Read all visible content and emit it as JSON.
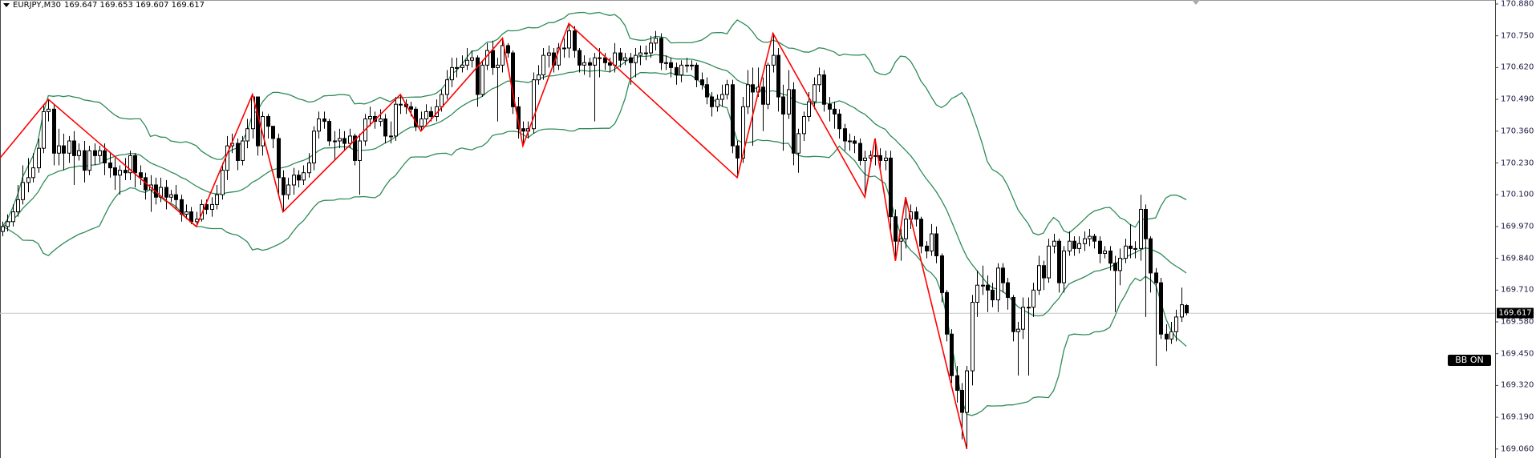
{
  "header": {
    "symbol_timeframe": "EURJPY,M30",
    "ohlc": "169.647 169.653 169.607 169.617"
  },
  "bb_button": {
    "label": "BB ON"
  },
  "colors": {
    "bands": "#2e8b57",
    "zigzag": "#ff0000",
    "bull_fill": "#ffffff",
    "bear_fill": "#000000",
    "price_line": "#c8c8c8"
  },
  "chart_data": {
    "type": "candlestick",
    "symbol": "EURJPY",
    "timeframe": "M30",
    "ylim": [
      169.06,
      170.88
    ],
    "y_ticks": [
      "170.880",
      "170.750",
      "170.620",
      "170.490",
      "170.360",
      "170.230",
      "170.100",
      "169.970",
      "169.840",
      "169.710",
      "169.580",
      "169.450",
      "169.320",
      "169.190",
      "169.060"
    ],
    "current_price": "169.617",
    "indicators": {
      "bollinger": {
        "period": 20,
        "deviations": 2
      }
    },
    "zigzag": [
      [
        0,
        170.25
      ],
      [
        9,
        170.49
      ],
      [
        38,
        169.97
      ],
      [
        49,
        170.51
      ],
      [
        55,
        170.03
      ],
      [
        78,
        170.51
      ],
      [
        82,
        170.36
      ],
      [
        98,
        170.74
      ],
      [
        102,
        170.3
      ],
      [
        111,
        170.8
      ],
      [
        144,
        170.17
      ],
      [
        151,
        170.76
      ],
      [
        169,
        170.09
      ],
      [
        171,
        170.33
      ],
      [
        175,
        169.83
      ],
      [
        177,
        170.09
      ],
      [
        189,
        169.06
      ]
    ],
    "candles": {
      "o": [
        169.95,
        169.97,
        169.99,
        170.03,
        170.08,
        170.15,
        170.17,
        170.21,
        170.29,
        170.44,
        170.45,
        170.27,
        170.3,
        170.27,
        170.32,
        170.26,
        170.28,
        170.2,
        170.28,
        170.26,
        170.28,
        170.23,
        170.21,
        170.18,
        170.2,
        170.19,
        170.26,
        170.19,
        170.17,
        170.12,
        170.14,
        170.09,
        170.13,
        170.09,
        170.1,
        170.08,
        170.02,
        170.03,
        169.99,
        170.0,
        170.06,
        170.04,
        170.06,
        170.1,
        170.2,
        170.3,
        170.31,
        170.24,
        170.32,
        170.37,
        170.5,
        170.3,
        170.42,
        170.38,
        170.33,
        170.17,
        170.1,
        170.14,
        170.18,
        170.16,
        170.19,
        170.23,
        170.36,
        170.41,
        170.4,
        170.32,
        170.32,
        170.33,
        170.31,
        170.34,
        170.24,
        170.32,
        170.41,
        170.42,
        170.4,
        170.41,
        170.34,
        170.34,
        170.47,
        170.47,
        170.46,
        170.45,
        170.38,
        170.41,
        170.44,
        170.42,
        170.46,
        170.51,
        170.57,
        170.62,
        170.62,
        170.63,
        170.65,
        170.66,
        170.51,
        170.63,
        170.69,
        170.62,
        170.63,
        170.71,
        170.68,
        170.46,
        170.37,
        170.36,
        170.37,
        170.57,
        170.59,
        170.67,
        170.68,
        170.63,
        170.7,
        170.7,
        170.77,
        170.69,
        170.63,
        170.64,
        170.63,
        170.66,
        170.66,
        170.64,
        170.63,
        170.68,
        170.65,
        170.66,
        170.64,
        170.67,
        170.68,
        170.68,
        170.72,
        170.74,
        170.64,
        170.64,
        170.62,
        170.59,
        170.63,
        170.63,
        170.63,
        170.57,
        170.55,
        170.5,
        170.46,
        170.49,
        170.51,
        170.55,
        170.3,
        170.25,
        170.46,
        170.55,
        170.52,
        170.54,
        170.47,
        170.63,
        170.67,
        170.5,
        170.43,
        170.53,
        170.27,
        170.35,
        170.42,
        170.48,
        170.55,
        170.59,
        170.47,
        170.45,
        170.43,
        170.37,
        170.32,
        170.32,
        170.31,
        170.24,
        170.25,
        170.26,
        170.26,
        170.24,
        170.25,
        170.01,
        169.91,
        169.92,
        170.0,
        170.03,
        170.0,
        169.89,
        169.87,
        169.94,
        169.85,
        169.7,
        169.53,
        169.36,
        169.3,
        169.21,
        169.38,
        169.66,
        169.73,
        169.73,
        169.71,
        169.67,
        169.8,
        169.74,
        169.68,
        169.54,
        169.55,
        169.64,
        169.64,
        169.71,
        169.81,
        169.76,
        169.89,
        169.91,
        169.74,
        169.87,
        169.91,
        169.88,
        169.9,
        169.92,
        169.93,
        169.91,
        169.86,
        169.87,
        169.82,
        169.79,
        169.84,
        169.89,
        169.88,
        169.88,
        170.04,
        169.92,
        169.78,
        169.74,
        169.53,
        169.51,
        169.54,
        169.6,
        169.647
      ],
      "h": [
        169.99,
        170.02,
        170.06,
        170.14,
        170.22,
        170.25,
        170.27,
        170.33,
        170.47,
        170.49,
        170.47,
        170.37,
        170.35,
        170.34,
        170.36,
        170.31,
        170.32,
        170.3,
        170.31,
        170.3,
        170.31,
        170.27,
        170.25,
        170.22,
        170.25,
        170.28,
        170.27,
        170.22,
        170.19,
        170.18,
        170.17,
        170.17,
        170.16,
        170.12,
        170.14,
        170.1,
        170.06,
        170.05,
        170.03,
        170.08,
        170.08,
        170.09,
        170.14,
        170.23,
        170.34,
        170.35,
        170.33,
        170.34,
        170.41,
        170.51,
        170.5,
        170.44,
        170.43,
        170.38,
        170.35,
        170.2,
        170.17,
        170.21,
        170.2,
        170.22,
        170.27,
        170.38,
        170.44,
        170.44,
        170.41,
        170.36,
        170.37,
        170.36,
        170.37,
        170.35,
        170.35,
        170.43,
        170.46,
        170.44,
        170.45,
        170.43,
        170.4,
        170.5,
        170.51,
        170.49,
        170.48,
        170.46,
        170.44,
        170.47,
        170.46,
        170.49,
        170.53,
        170.61,
        170.66,
        170.66,
        170.67,
        170.7,
        170.69,
        170.67,
        170.65,
        170.72,
        170.73,
        170.66,
        170.74,
        170.72,
        170.69,
        170.5,
        170.4,
        170.4,
        170.6,
        170.63,
        170.7,
        170.71,
        170.7,
        170.72,
        170.74,
        170.8,
        170.79,
        170.7,
        170.67,
        170.66,
        170.68,
        170.7,
        170.68,
        170.66,
        170.72,
        170.7,
        170.68,
        170.68,
        170.7,
        170.71,
        170.71,
        170.75,
        170.77,
        170.76,
        170.67,
        170.66,
        170.64,
        170.65,
        170.66,
        170.65,
        170.64,
        170.6,
        170.58,
        170.52,
        170.51,
        170.55,
        170.57,
        170.57,
        170.32,
        170.5,
        170.61,
        170.62,
        170.62,
        170.58,
        170.64,
        170.76,
        170.7,
        170.55,
        170.61,
        170.56,
        170.37,
        170.44,
        170.52,
        170.58,
        170.62,
        170.61,
        170.5,
        170.48,
        170.45,
        170.39,
        170.35,
        170.34,
        170.33,
        170.28,
        170.28,
        170.33,
        170.29,
        170.28,
        170.28,
        170.04,
        169.96,
        170.09,
        170.06,
        170.05,
        170.01,
        169.91,
        169.98,
        169.97,
        169.86,
        169.71,
        169.55,
        169.4,
        169.33,
        169.4,
        169.69,
        169.79,
        169.81,
        169.77,
        169.74,
        169.82,
        169.82,
        169.76,
        169.69,
        169.58,
        169.68,
        169.68,
        169.74,
        169.85,
        169.83,
        169.92,
        169.94,
        169.92,
        169.89,
        169.95,
        169.93,
        169.93,
        169.95,
        169.96,
        169.94,
        169.93,
        169.89,
        169.89,
        169.85,
        169.88,
        169.92,
        169.98,
        169.91,
        170.1,
        170.06,
        169.93,
        169.8,
        169.76,
        169.57,
        169.58,
        169.63,
        169.72,
        169.653
      ],
      "l": [
        169.93,
        169.95,
        169.97,
        170.01,
        170.06,
        170.11,
        170.15,
        170.19,
        170.27,
        170.4,
        170.22,
        170.22,
        170.2,
        170.23,
        170.14,
        170.24,
        170.15,
        170.18,
        170.22,
        170.23,
        170.18,
        170.17,
        170.12,
        170.1,
        170.16,
        170.16,
        170.13,
        170.14,
        170.08,
        170.03,
        170.06,
        170.07,
        170.04,
        170.07,
        170.04,
        169.99,
        170.0,
        169.98,
        169.97,
        169.99,
        170.02,
        170.01,
        170.04,
        170.08,
        170.16,
        170.27,
        170.2,
        170.22,
        170.29,
        170.33,
        170.26,
        170.26,
        170.33,
        170.29,
        170.1,
        170.03,
        170.08,
        170.1,
        170.13,
        170.14,
        170.17,
        170.2,
        170.33,
        170.37,
        170.3,
        170.24,
        170.29,
        170.28,
        170.29,
        170.22,
        170.1,
        170.3,
        170.38,
        170.37,
        170.38,
        170.31,
        170.31,
        170.32,
        170.43,
        170.43,
        170.42,
        170.36,
        170.36,
        170.39,
        170.4,
        170.4,
        170.44,
        170.49,
        170.54,
        170.58,
        170.6,
        170.61,
        170.62,
        170.46,
        170.5,
        170.61,
        170.59,
        170.4,
        170.6,
        170.66,
        170.43,
        170.33,
        170.3,
        170.33,
        170.35,
        170.55,
        170.57,
        170.62,
        170.6,
        170.61,
        170.66,
        170.66,
        170.66,
        170.6,
        170.59,
        170.58,
        170.4,
        170.58,
        170.61,
        170.6,
        170.6,
        170.62,
        170.63,
        170.55,
        170.58,
        170.63,
        170.65,
        170.66,
        170.69,
        170.61,
        170.61,
        170.58,
        170.55,
        170.56,
        170.6,
        170.61,
        170.54,
        170.53,
        170.47,
        170.42,
        170.44,
        170.46,
        170.49,
        170.27,
        170.17,
        170.23,
        170.43,
        170.3,
        170.5,
        170.36,
        170.45,
        170.6,
        170.44,
        170.28,
        170.41,
        170.22,
        170.19,
        170.32,
        170.4,
        170.45,
        170.52,
        170.44,
        170.4,
        170.37,
        170.33,
        170.28,
        170.28,
        170.27,
        170.22,
        170.09,
        170.22,
        170.22,
        170.21,
        170.2,
        169.95,
        169.83,
        169.83,
        169.88,
        169.96,
        169.97,
        169.86,
        169.84,
        169.85,
        169.82,
        169.66,
        169.5,
        169.33,
        169.25,
        169.1,
        169.06,
        169.32,
        169.6,
        169.69,
        169.62,
        169.64,
        169.62,
        169.7,
        169.63,
        169.5,
        169.36,
        169.51,
        169.36,
        169.6,
        169.69,
        169.71,
        169.74,
        169.86,
        169.7,
        169.7,
        169.85,
        169.85,
        169.86,
        169.87,
        169.89,
        169.88,
        169.82,
        169.84,
        169.79,
        169.62,
        169.73,
        169.82,
        169.84,
        169.84,
        169.83,
        169.6,
        169.7,
        169.4,
        169.51,
        169.46,
        169.49,
        169.5,
        169.58,
        169.607
      ],
      "c": [
        169.97,
        169.99,
        170.03,
        170.08,
        170.15,
        170.17,
        170.21,
        170.29,
        170.44,
        170.45,
        170.27,
        170.3,
        170.27,
        170.32,
        170.26,
        170.28,
        170.2,
        170.28,
        170.26,
        170.28,
        170.23,
        170.21,
        170.18,
        170.2,
        170.19,
        170.26,
        170.19,
        170.17,
        170.12,
        170.14,
        170.09,
        170.13,
        170.09,
        170.1,
        170.08,
        170.02,
        170.03,
        169.99,
        170.0,
        170.06,
        170.04,
        170.06,
        170.1,
        170.2,
        170.3,
        170.31,
        170.24,
        170.32,
        170.37,
        170.5,
        170.3,
        170.42,
        170.38,
        170.33,
        170.17,
        170.1,
        170.14,
        170.18,
        170.16,
        170.19,
        170.23,
        170.36,
        170.41,
        170.4,
        170.32,
        170.32,
        170.33,
        170.31,
        170.34,
        170.24,
        170.32,
        170.41,
        170.42,
        170.4,
        170.41,
        170.34,
        170.34,
        170.47,
        170.47,
        170.46,
        170.45,
        170.38,
        170.41,
        170.44,
        170.42,
        170.46,
        170.51,
        170.57,
        170.62,
        170.62,
        170.63,
        170.65,
        170.66,
        170.51,
        170.63,
        170.69,
        170.62,
        170.63,
        170.71,
        170.68,
        170.46,
        170.37,
        170.36,
        170.37,
        170.57,
        170.59,
        170.67,
        170.68,
        170.63,
        170.7,
        170.7,
        170.77,
        170.69,
        170.63,
        170.64,
        170.63,
        170.66,
        170.66,
        170.64,
        170.63,
        170.68,
        170.65,
        170.66,
        170.64,
        170.67,
        170.68,
        170.68,
        170.72,
        170.74,
        170.64,
        170.64,
        170.62,
        170.59,
        170.63,
        170.63,
        170.63,
        170.57,
        170.55,
        170.5,
        170.46,
        170.49,
        170.51,
        170.55,
        170.3,
        170.25,
        170.46,
        170.55,
        170.52,
        170.54,
        170.47,
        170.63,
        170.67,
        170.5,
        170.43,
        170.53,
        170.27,
        170.35,
        170.42,
        170.48,
        170.55,
        170.59,
        170.47,
        170.45,
        170.43,
        170.37,
        170.32,
        170.32,
        170.31,
        170.24,
        170.25,
        170.26,
        170.26,
        170.24,
        170.25,
        170.01,
        169.91,
        169.92,
        170.0,
        170.03,
        170.0,
        169.89,
        169.87,
        169.94,
        169.85,
        169.7,
        169.53,
        169.36,
        169.3,
        169.21,
        169.38,
        169.66,
        169.73,
        169.73,
        169.71,
        169.67,
        169.8,
        169.74,
        169.68,
        169.54,
        169.55,
        169.64,
        169.64,
        169.71,
        169.81,
        169.76,
        169.89,
        169.91,
        169.74,
        169.87,
        169.91,
        169.88,
        169.9,
        169.92,
        169.93,
        169.91,
        169.86,
        169.87,
        169.82,
        169.79,
        169.84,
        169.89,
        169.88,
        169.88,
        170.04,
        169.92,
        169.78,
        169.74,
        169.53,
        169.51,
        169.54,
        169.6,
        169.65,
        169.617
      ]
    }
  }
}
